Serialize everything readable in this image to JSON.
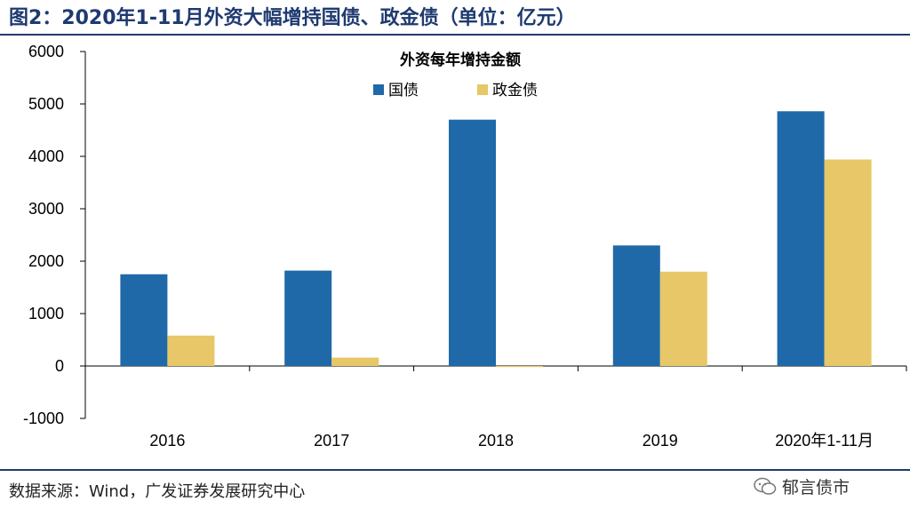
{
  "figure": {
    "title": "图2：2020年1-11月外资大幅增持国债、政金债（单位：亿元）",
    "source": "数据来源：Wind，广发证券发展研究中心",
    "watermark": "郁言债市"
  },
  "colors": {
    "series_1": "#1f69a8",
    "series_2": "#e7c767",
    "rule": "#1f3a70"
  },
  "chart_data": {
    "type": "bar",
    "title": "外资每年增持金额",
    "categories": [
      "2016",
      "2017",
      "2018",
      "2019",
      "2020年1-11月"
    ],
    "series": [
      {
        "name": "国债",
        "values": [
          1750,
          1820,
          4700,
          2300,
          4860
        ]
      },
      {
        "name": "政金债",
        "values": [
          580,
          160,
          -20,
          1800,
          3940
        ]
      }
    ],
    "ylim": [
      -1000,
      6000
    ],
    "yticks": [
      -1000,
      0,
      1000,
      2000,
      3000,
      4000,
      5000,
      6000
    ],
    "legend_position": "top-center",
    "grid": false
  }
}
